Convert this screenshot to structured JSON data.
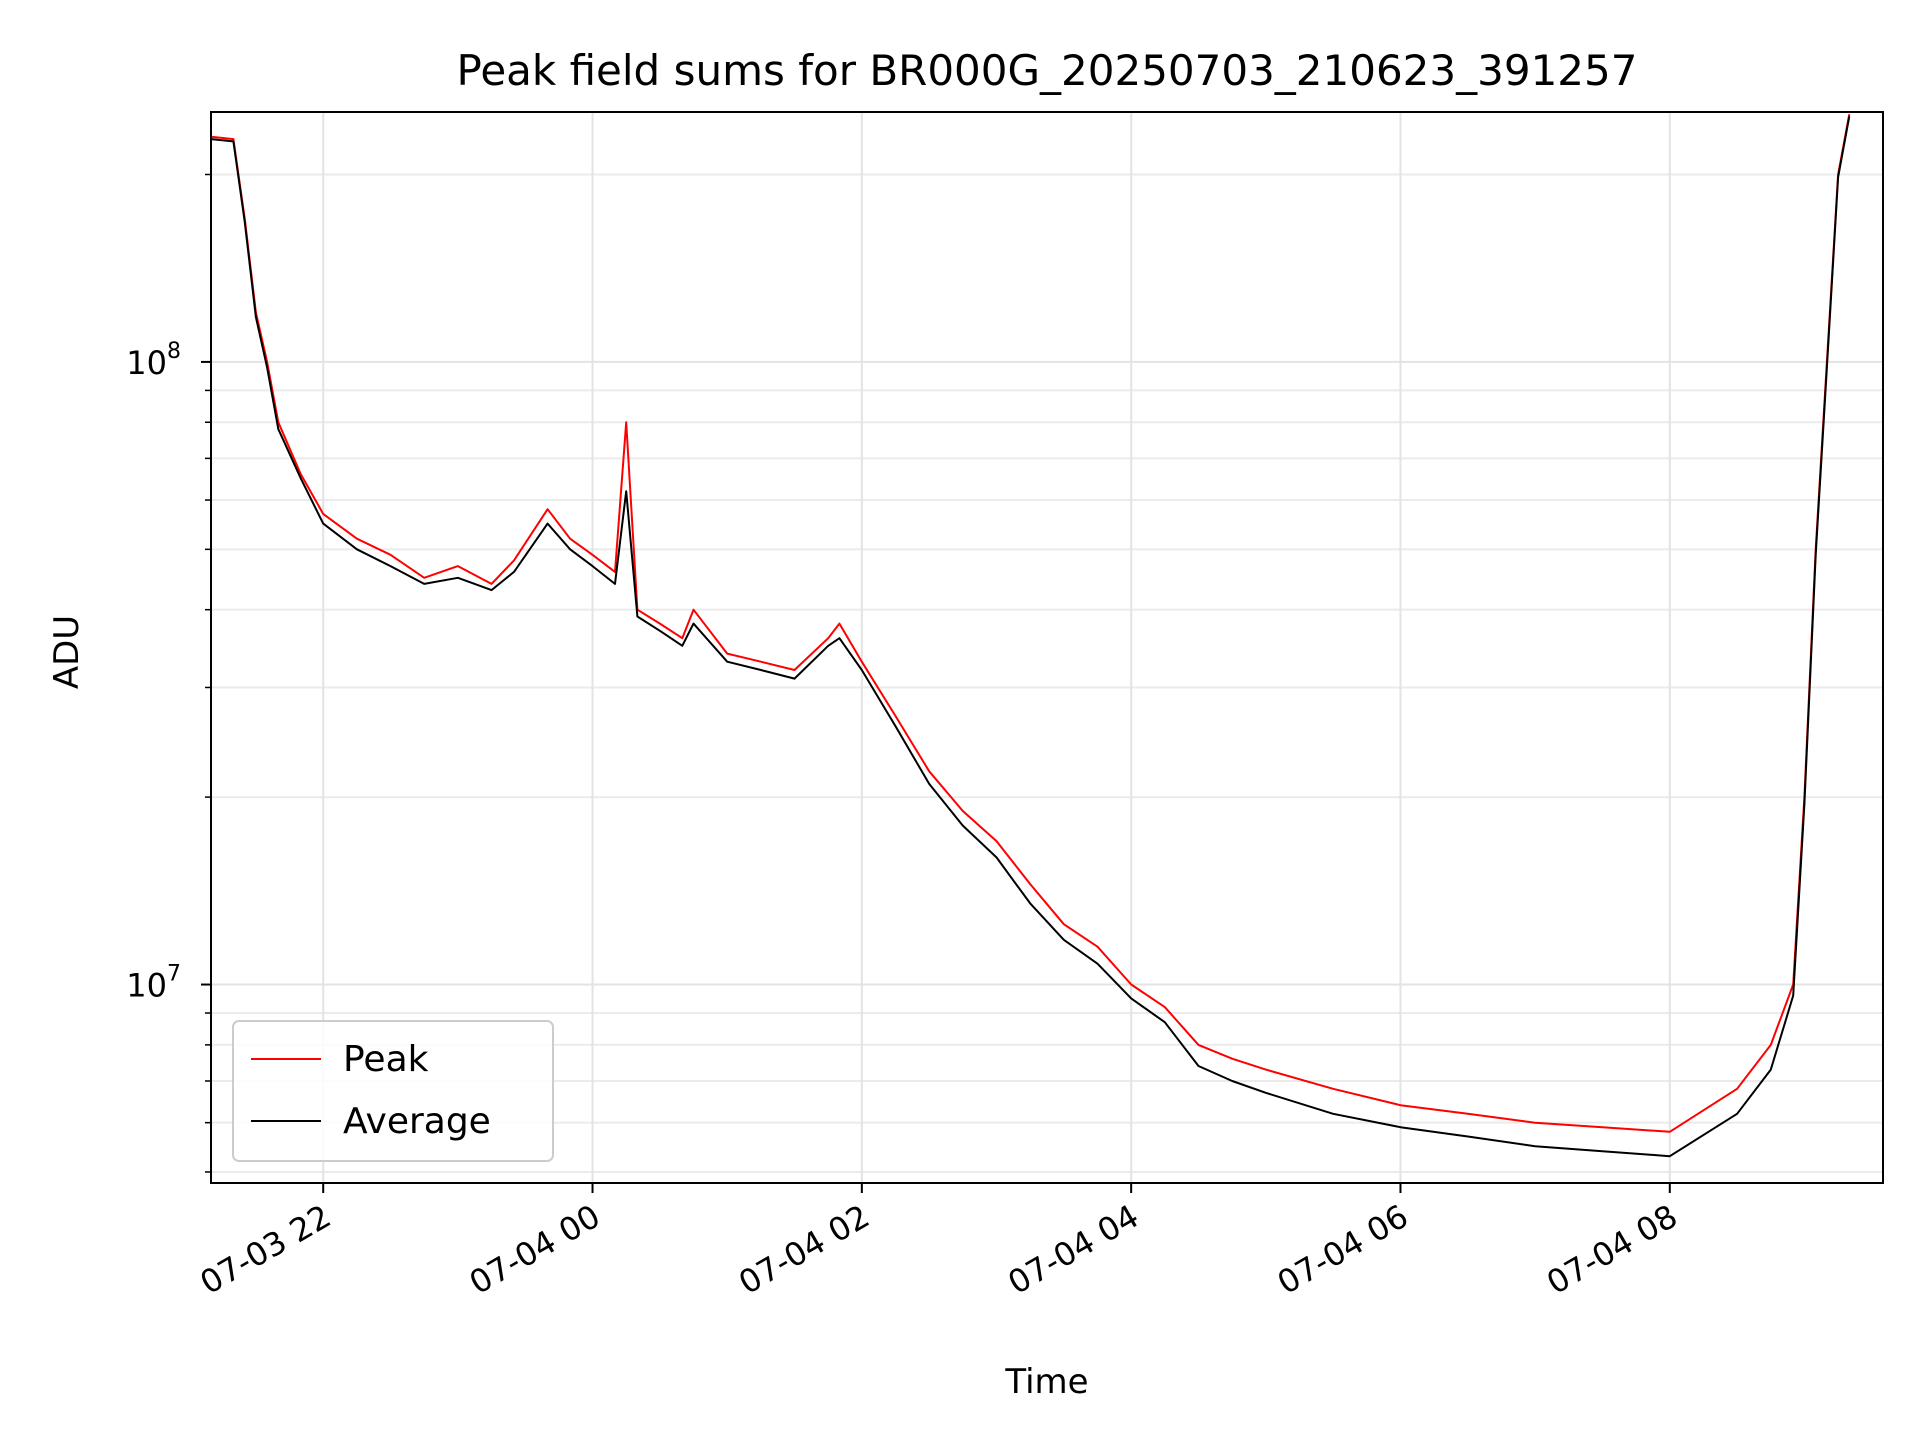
{
  "chart_data": {
    "type": "line",
    "title": "Peak field sums for BR000G_20250703_210623_391257",
    "xlabel": "Time",
    "ylabel": "ADU",
    "yscale": "log",
    "xlim": [
      "2025-07-03 21:10",
      "2025-07-04 09:35"
    ],
    "ylim": [
      4800000,
      252000000
    ],
    "grid": true,
    "legend": {
      "position": "lower-left",
      "entries": [
        "Peak",
        "Average"
      ]
    },
    "x_ticks": [
      "07-03 22",
      "07-04 00",
      "07-04 02",
      "07-04 04",
      "07-04 06",
      "07-04 08"
    ],
    "x_tick_times": [
      "2025-07-03 22:00",
      "2025-07-04 00:00",
      "2025-07-04 02:00",
      "2025-07-04 04:00",
      "2025-07-04 06:00",
      "2025-07-04 08:00"
    ],
    "y_ticks": [
      {
        "base": "10",
        "exp": "7",
        "value": 10000000
      },
      {
        "base": "10",
        "exp": "8",
        "value": 100000000
      }
    ],
    "x": [
      "2025-07-03 21:10",
      "2025-07-03 21:20",
      "2025-07-03 21:25",
      "2025-07-03 21:30",
      "2025-07-03 21:35",
      "2025-07-03 21:40",
      "2025-07-03 21:50",
      "2025-07-03 22:00",
      "2025-07-03 22:15",
      "2025-07-03 22:30",
      "2025-07-03 22:45",
      "2025-07-03 23:00",
      "2025-07-03 23:15",
      "2025-07-03 23:25",
      "2025-07-03 23:40",
      "2025-07-03 23:50",
      "2025-07-04 00:00",
      "2025-07-04 00:10",
      "2025-07-04 00:15",
      "2025-07-04 00:20",
      "2025-07-04 00:30",
      "2025-07-04 00:40",
      "2025-07-04 00:45",
      "2025-07-04 01:00",
      "2025-07-04 01:15",
      "2025-07-04 01:30",
      "2025-07-04 01:45",
      "2025-07-04 01:50",
      "2025-07-04 02:00",
      "2025-07-04 02:15",
      "2025-07-04 02:30",
      "2025-07-04 02:45",
      "2025-07-04 03:00",
      "2025-07-04 03:15",
      "2025-07-04 03:30",
      "2025-07-04 03:45",
      "2025-07-04 04:00",
      "2025-07-04 04:15",
      "2025-07-04 04:30",
      "2025-07-04 04:45",
      "2025-07-04 05:00",
      "2025-07-04 05:30",
      "2025-07-04 06:00",
      "2025-07-04 06:30",
      "2025-07-04 07:00",
      "2025-07-04 07:30",
      "2025-07-04 08:00",
      "2025-07-04 08:30",
      "2025-07-04 08:45",
      "2025-07-04 08:55",
      "2025-07-04 09:00",
      "2025-07-04 09:05",
      "2025-07-04 09:10",
      "2025-07-04 09:15",
      "2025-07-04 09:20"
    ],
    "series": [
      {
        "name": "Peak",
        "color": "#ff0000",
        "values": [
          230000000,
          228000000,
          170000000,
          120000000,
          100000000,
          80000000,
          66000000,
          57000000,
          52000000,
          49000000,
          45000000,
          47000000,
          44000000,
          48000000,
          58000000,
          52000000,
          49000000,
          46000000,
          80000000,
          40000000,
          38000000,
          36000000,
          40000000,
          34000000,
          33000000,
          32000000,
          36000000,
          38000000,
          33000000,
          27000000,
          22000000,
          19000000,
          17000000,
          14500000,
          12500000,
          11500000,
          10000000,
          9200000,
          8000000,
          7600000,
          7300000,
          6800000,
          6400000,
          6200000,
          6000000,
          5900000,
          5800000,
          6800000,
          8000000,
          10000000,
          20000000,
          50000000,
          100000000,
          200000000,
          250000000
        ]
      },
      {
        "name": "Average",
        "color": "#000000",
        "values": [
          228000000,
          226000000,
          168000000,
          118000000,
          98000000,
          78000000,
          65000000,
          55000000,
          50000000,
          47000000,
          44000000,
          45000000,
          43000000,
          46000000,
          55000000,
          50000000,
          47000000,
          44000000,
          62000000,
          39000000,
          37000000,
          35000000,
          38000000,
          33000000,
          32000000,
          31000000,
          35000000,
          36000000,
          32000000,
          26000000,
          21000000,
          18000000,
          16000000,
          13500000,
          11800000,
          10800000,
          9500000,
          8700000,
          7400000,
          7000000,
          6700000,
          6200000,
          5900000,
          5700000,
          5500000,
          5400000,
          5300000,
          6200000,
          7300000,
          9600000,
          19500000,
          49000000,
          98000000,
          198000000,
          248000000
        ]
      }
    ]
  }
}
